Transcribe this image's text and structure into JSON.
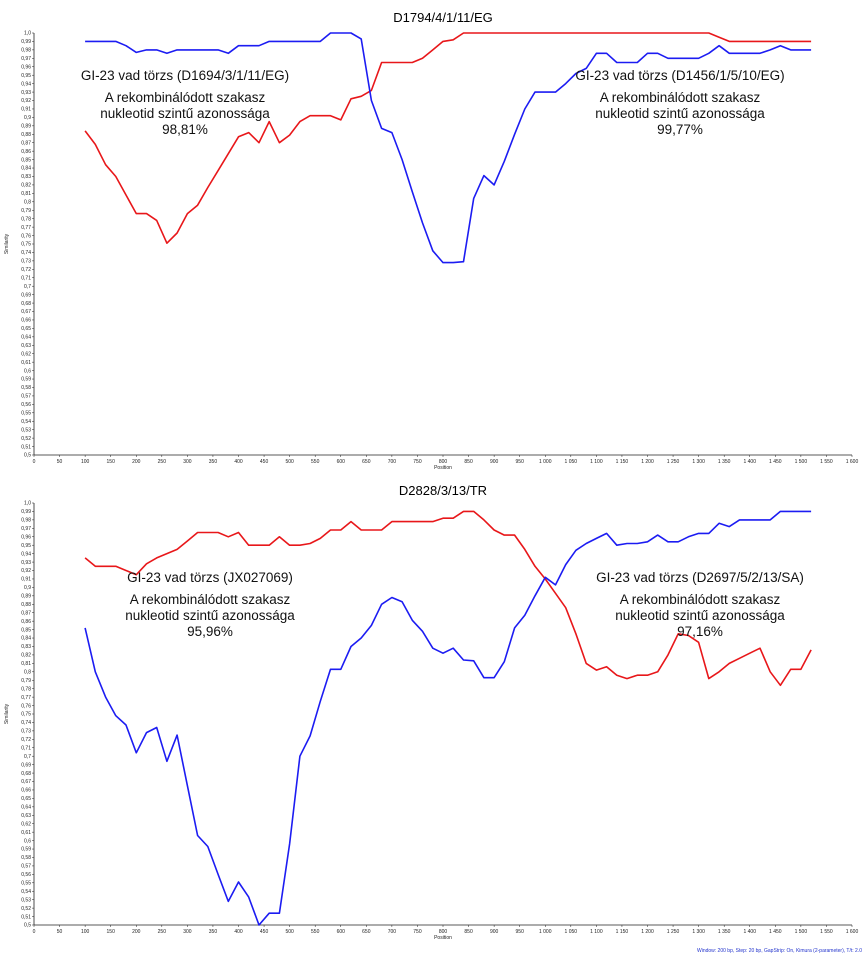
{
  "footer": "Window: 200 bp, Step: 20 bp, GapStrip: On, Kimura (2-parameter), T/t: 2.0",
  "colors": {
    "red_series": "#e8171a",
    "blue_series": "#1c1cf2",
    "axis": "#222222"
  },
  "chart_data": [
    {
      "type": "line",
      "title": "D1794/4/1/11/EG",
      "xlabel": "Position",
      "ylabel": "Similarity",
      "xlim": [
        0,
        1600
      ],
      "ylim": [
        0.5,
        1.0
      ],
      "x_ticks": [
        "0",
        "50",
        "100",
        "150",
        "200",
        "250",
        "300",
        "350",
        "400",
        "450",
        "500",
        "550",
        "600",
        "650",
        "700",
        "750",
        "800",
        "850",
        "900",
        "950",
        "1 000",
        "1 050",
        "1 100",
        "1 150",
        "1 200",
        "1 250",
        "1 300",
        "1 350",
        "1 400",
        "1 450",
        "1 500",
        "1 550",
        "1 600"
      ],
      "y_ticks": [
        "0,5",
        "0,51",
        "0,52",
        "0,53",
        "0,54",
        "0,55",
        "0,56",
        "0,57",
        "0,58",
        "0,59",
        "0,6",
        "0,61",
        "0,62",
        "0,63",
        "0,64",
        "0,65",
        "0,66",
        "0,67",
        "0,68",
        "0,69",
        "0,7",
        "0,71",
        "0,72",
        "0,73",
        "0,74",
        "0,75",
        "0,76",
        "0,77",
        "0,78",
        "0,79",
        "0,8",
        "0,81",
        "0,82",
        "0,83",
        "0,84",
        "0,85",
        "0,86",
        "0,87",
        "0,88",
        "0,89",
        "0,9",
        "0,91",
        "0,92",
        "0,93",
        "0,94",
        "0,95",
        "0,96",
        "0,97",
        "0,98",
        "0,99",
        "1,0"
      ],
      "annotations": [
        {
          "lines": [
            "GI-23 vad törzs (D1694/3/1/11/EG)",
            "A rekombinálódott szakasz",
            "nukleotid szintű azonossága",
            "98,81%"
          ]
        },
        {
          "lines": [
            "GI-23 vad törzs (D1456/1/5/10/EG)",
            "A rekombinálódott szakasz",
            "nukleotid szintű azonossága",
            "99,77%"
          ]
        }
      ],
      "series": [
        {
          "color": "red",
          "x": [
            100,
            120,
            140,
            160,
            180,
            200,
            220,
            240,
            260,
            280,
            300,
            320,
            340,
            360,
            380,
            400,
            420,
            440,
            460,
            480,
            500,
            520,
            540,
            560,
            580,
            600,
            620,
            640,
            660,
            680,
            700,
            720,
            740,
            760,
            780,
            800,
            820,
            840,
            860,
            880,
            900,
            920,
            940,
            960,
            980,
            1000,
            1020,
            1040,
            1060,
            1080,
            1100,
            1120,
            1140,
            1160,
            1180,
            1200,
            1220,
            1240,
            1260,
            1280,
            1300,
            1320,
            1340,
            1360,
            1380,
            1400,
            1420,
            1440,
            1460,
            1480,
            1500,
            1520
          ],
          "y": [
            0.884,
            0.868,
            0.844,
            0.83,
            0.808,
            0.786,
            0.786,
            0.778,
            0.751,
            0.763,
            0.786,
            0.796,
            0.817,
            0.837,
            0.857,
            0.877,
            0.882,
            0.87,
            0.895,
            0.87,
            0.879,
            0.895,
            0.902,
            0.902,
            0.902,
            0.897,
            0.922,
            0.925,
            0.932,
            0.965,
            0.965,
            0.965,
            0.965,
            0.97,
            0.98,
            0.99,
            0.992,
            1.0,
            1.0,
            1.0,
            1.0,
            1.0,
            1.0,
            1.0,
            1.0,
            1.0,
            1.0,
            1.0,
            1.0,
            1.0,
            1.0,
            1.0,
            1.0,
            1.0,
            1.0,
            1.0,
            1.0,
            1.0,
            1.0,
            1.0,
            1.0,
            1.0,
            0.995,
            0.99,
            0.99,
            0.99,
            0.99,
            0.99,
            0.99,
            0.99,
            0.99,
            0.99
          ]
        },
        {
          "color": "blue",
          "x": [
            100,
            120,
            140,
            160,
            180,
            200,
            220,
            240,
            260,
            280,
            300,
            320,
            340,
            360,
            380,
            400,
            420,
            440,
            460,
            480,
            500,
            520,
            540,
            560,
            580,
            600,
            620,
            640,
            660,
            680,
            700,
            720,
            740,
            760,
            780,
            800,
            820,
            840,
            860,
            880,
            900,
            920,
            940,
            960,
            980,
            1000,
            1020,
            1040,
            1060,
            1080,
            1100,
            1120,
            1140,
            1160,
            1180,
            1200,
            1220,
            1240,
            1260,
            1280,
            1300,
            1320,
            1340,
            1360,
            1380,
            1400,
            1420,
            1440,
            1460,
            1480,
            1500,
            1520
          ],
          "y": [
            0.99,
            0.99,
            0.99,
            0.99,
            0.985,
            0.977,
            0.98,
            0.98,
            0.976,
            0.98,
            0.98,
            0.98,
            0.98,
            0.98,
            0.976,
            0.985,
            0.985,
            0.985,
            0.99,
            0.99,
            0.99,
            0.99,
            0.99,
            0.99,
            1.0,
            1.0,
            1.0,
            0.993,
            0.92,
            0.887,
            0.882,
            0.85,
            0.812,
            0.775,
            0.742,
            0.728,
            0.728,
            0.729,
            0.804,
            0.831,
            0.82,
            0.848,
            0.88,
            0.91,
            0.93,
            0.93,
            0.93,
            0.94,
            0.952,
            0.958,
            0.976,
            0.976,
            0.965,
            0.965,
            0.965,
            0.976,
            0.976,
            0.97,
            0.97,
            0.97,
            0.97,
            0.976,
            0.985,
            0.976,
            0.976,
            0.976,
            0.976,
            0.98,
            0.985,
            0.98,
            0.98,
            0.98
          ]
        }
      ]
    },
    {
      "type": "line",
      "title": "D2828/3/13/TR",
      "xlabel": "Position",
      "ylabel": "Similarity",
      "xlim": [
        0,
        1600
      ],
      "ylim": [
        0.5,
        1.0
      ],
      "x_ticks": [
        "0",
        "50",
        "100",
        "150",
        "200",
        "250",
        "300",
        "350",
        "400",
        "450",
        "500",
        "550",
        "600",
        "650",
        "700",
        "750",
        "800",
        "850",
        "900",
        "950",
        "1 000",
        "1 050",
        "1 100",
        "1 150",
        "1 200",
        "1 250",
        "1 300",
        "1 350",
        "1 400",
        "1 450",
        "1 500",
        "1 550",
        "1 600"
      ],
      "y_ticks": [
        "0,5",
        "0,51",
        "0,52",
        "0,53",
        "0,54",
        "0,55",
        "0,56",
        "0,57",
        "0,58",
        "0,59",
        "0,6",
        "0,61",
        "0,62",
        "0,63",
        "0,64",
        "0,65",
        "0,66",
        "0,67",
        "0,68",
        "0,69",
        "0,7",
        "0,71",
        "0,72",
        "0,73",
        "0,74",
        "0,75",
        "0,76",
        "0,77",
        "0,78",
        "0,79",
        "0,8",
        "0,81",
        "0,82",
        "0,83",
        "0,84",
        "0,85",
        "0,86",
        "0,87",
        "0,88",
        "0,89",
        "0,9",
        "0,91",
        "0,92",
        "0,93",
        "0,94",
        "0,95",
        "0,96",
        "0,97",
        "0,98",
        "0,99",
        "1,0"
      ],
      "annotations": [
        {
          "lines": [
            "GI-23 vad törzs (JX027069)",
            "A rekombinálódott szakasz",
            "nukleotid szintű azonossága",
            "95,96%"
          ]
        },
        {
          "lines": [
            "GI-23 vad törzs (D2697/5/2/13/SA)",
            "A rekombinálódott szakasz",
            "nukleotid szintű azonossága",
            "97,16%"
          ]
        }
      ],
      "series": [
        {
          "color": "red",
          "x": [
            100,
            120,
            140,
            160,
            180,
            200,
            220,
            240,
            260,
            280,
            300,
            320,
            340,
            360,
            380,
            400,
            420,
            440,
            460,
            480,
            500,
            520,
            540,
            560,
            580,
            600,
            620,
            640,
            660,
            680,
            700,
            720,
            740,
            760,
            780,
            800,
            820,
            840,
            860,
            880,
            900,
            920,
            940,
            960,
            980,
            1000,
            1020,
            1040,
            1060,
            1080,
            1100,
            1120,
            1140,
            1160,
            1180,
            1200,
            1220,
            1240,
            1260,
            1280,
            1300,
            1320,
            1340,
            1360,
            1380,
            1400,
            1420,
            1440,
            1460,
            1480,
            1500,
            1520
          ],
          "y": [
            0.935,
            0.925,
            0.925,
            0.925,
            0.92,
            0.915,
            0.928,
            0.935,
            0.94,
            0.945,
            0.955,
            0.965,
            0.965,
            0.965,
            0.96,
            0.965,
            0.95,
            0.95,
            0.95,
            0.96,
            0.95,
            0.95,
            0.952,
            0.958,
            0.968,
            0.968,
            0.978,
            0.968,
            0.968,
            0.968,
            0.978,
            0.978,
            0.978,
            0.978,
            0.978,
            0.982,
            0.982,
            0.99,
            0.99,
            0.98,
            0.968,
            0.962,
            0.962,
            0.945,
            0.925,
            0.91,
            0.893,
            0.876,
            0.845,
            0.81,
            0.802,
            0.806,
            0.796,
            0.792,
            0.796,
            0.796,
            0.8,
            0.82,
            0.845,
            0.843,
            0.835,
            0.792,
            0.8,
            0.81,
            0.816,
            0.822,
            0.828,
            0.8,
            0.784,
            0.803,
            0.803,
            0.826
          ]
        },
        {
          "color": "blue",
          "x": [
            100,
            120,
            140,
            160,
            180,
            200,
            220,
            240,
            260,
            280,
            300,
            320,
            340,
            360,
            380,
            400,
            420,
            440,
            460,
            480,
            500,
            520,
            540,
            560,
            580,
            600,
            620,
            640,
            660,
            680,
            700,
            720,
            740,
            760,
            780,
            800,
            820,
            840,
            860,
            880,
            900,
            920,
            940,
            960,
            980,
            1000,
            1020,
            1040,
            1060,
            1080,
            1100,
            1120,
            1140,
            1160,
            1180,
            1200,
            1220,
            1240,
            1260,
            1280,
            1300,
            1320,
            1340,
            1360,
            1380,
            1400,
            1420,
            1440,
            1460,
            1480,
            1500,
            1520
          ],
          "y": [
            0.852,
            0.8,
            0.77,
            0.748,
            0.737,
            0.704,
            0.728,
            0.734,
            0.694,
            0.725,
            0.665,
            0.606,
            0.593,
            0.56,
            0.528,
            0.551,
            0.533,
            0.5,
            0.514,
            0.514,
            0.596,
            0.7,
            0.724,
            0.765,
            0.803,
            0.803,
            0.83,
            0.84,
            0.855,
            0.88,
            0.888,
            0.883,
            0.861,
            0.848,
            0.828,
            0.822,
            0.828,
            0.814,
            0.813,
            0.793,
            0.793,
            0.812,
            0.852,
            0.867,
            0.89,
            0.912,
            0.903,
            0.927,
            0.944,
            0.952,
            0.958,
            0.964,
            0.95,
            0.952,
            0.952,
            0.954,
            0.962,
            0.954,
            0.954,
            0.96,
            0.964,
            0.964,
            0.976,
            0.972,
            0.98,
            0.98,
            0.98,
            0.98,
            0.99,
            0.99,
            0.99,
            0.99
          ]
        }
      ]
    }
  ]
}
